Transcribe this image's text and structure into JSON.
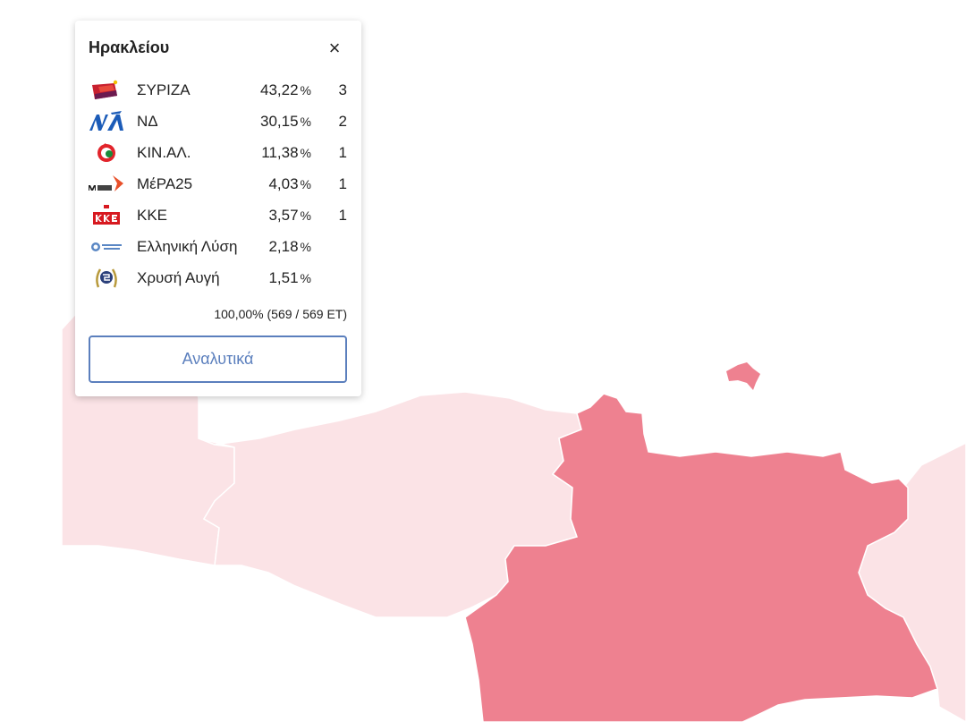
{
  "map": {
    "colors": {
      "dark_region": "#ee8190",
      "light_region": "#fbe3e6",
      "border": "#ffffff"
    }
  },
  "popup": {
    "title": "Ηρακλείου",
    "close_label": "×",
    "rows": [
      {
        "party": "ΣΥΡΙΖΑ",
        "pct": "43,22",
        "pct_sign": "%",
        "seats": "3",
        "logo": "syriza-logo"
      },
      {
        "party": "ΝΔ",
        "pct": "30,15",
        "pct_sign": "%",
        "seats": "2",
        "logo": "nd-logo"
      },
      {
        "party": "ΚΙΝ.ΑΛ.",
        "pct": "11,38",
        "pct_sign": "%",
        "seats": "1",
        "logo": "kinal-logo"
      },
      {
        "party": "ΜέΡΑ25",
        "pct": "4,03",
        "pct_sign": "%",
        "seats": "1",
        "logo": "mera25-logo"
      },
      {
        "party": "ΚΚΕ",
        "pct": "3,57",
        "pct_sign": "%",
        "seats": "1",
        "logo": "kke-logo"
      },
      {
        "party": "Ελληνική Λύση",
        "pct": "2,18",
        "pct_sign": "%",
        "seats": "",
        "logo": "elliniki-lysi-logo"
      },
      {
        "party": "Χρυσή Αυγή",
        "pct": "1,51",
        "pct_sign": "%",
        "seats": "",
        "logo": "chrysi-avgi-logo"
      }
    ],
    "counted": "100,00% (569 / 569 ΕΤ)",
    "details_label": "Αναλυτικά"
  }
}
